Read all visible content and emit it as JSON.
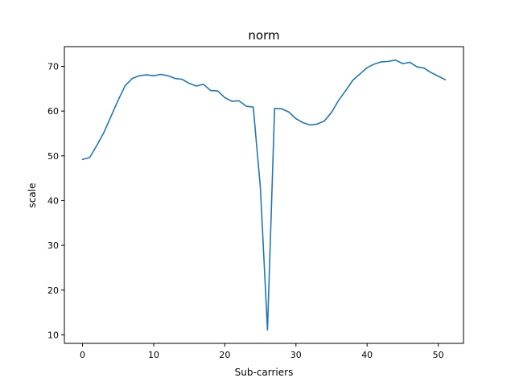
{
  "chart_data": {
    "type": "line",
    "title": "norm",
    "xlabel": "Sub-carriers",
    "ylabel": "scale",
    "xlim": [
      -2.55,
      53.55
    ],
    "ylim": [
      8.1,
      74.4
    ],
    "xticks": [
      0,
      10,
      20,
      30,
      40,
      50
    ],
    "yticks": [
      10,
      20,
      30,
      40,
      50,
      60,
      70
    ],
    "grid": false,
    "legend": "none",
    "series": [
      {
        "color": "#1f77b4",
        "x": [
          0,
          1,
          2,
          3,
          4,
          5,
          6,
          7,
          8,
          9,
          10,
          11,
          12,
          13,
          14,
          15,
          16,
          17,
          18,
          19,
          20,
          21,
          22,
          23,
          24,
          25,
          26,
          27,
          28,
          29,
          30,
          31,
          32,
          33,
          34,
          35,
          36,
          37,
          38,
          39,
          40,
          41,
          42,
          43,
          44,
          45,
          46,
          47,
          48,
          49,
          50,
          51
        ],
        "values": [
          49.2,
          49.6,
          52.3,
          55.2,
          58.8,
          62.4,
          65.7,
          67.3,
          67.9,
          68.1,
          67.9,
          68.2,
          67.9,
          67.3,
          67.1,
          66.2,
          65.6,
          66.0,
          64.6,
          64.5,
          63.0,
          62.2,
          62.3,
          61.1,
          60.9,
          42.9,
          11.1,
          60.6,
          60.5,
          59.8,
          58.3,
          57.4,
          56.9,
          57.1,
          57.8,
          59.7,
          62.4,
          64.6,
          66.9,
          68.3,
          69.7,
          70.5,
          71.0,
          71.1,
          71.4,
          70.6,
          70.9,
          69.9,
          69.6,
          68.6,
          67.8,
          67.0
        ]
      }
    ]
  }
}
